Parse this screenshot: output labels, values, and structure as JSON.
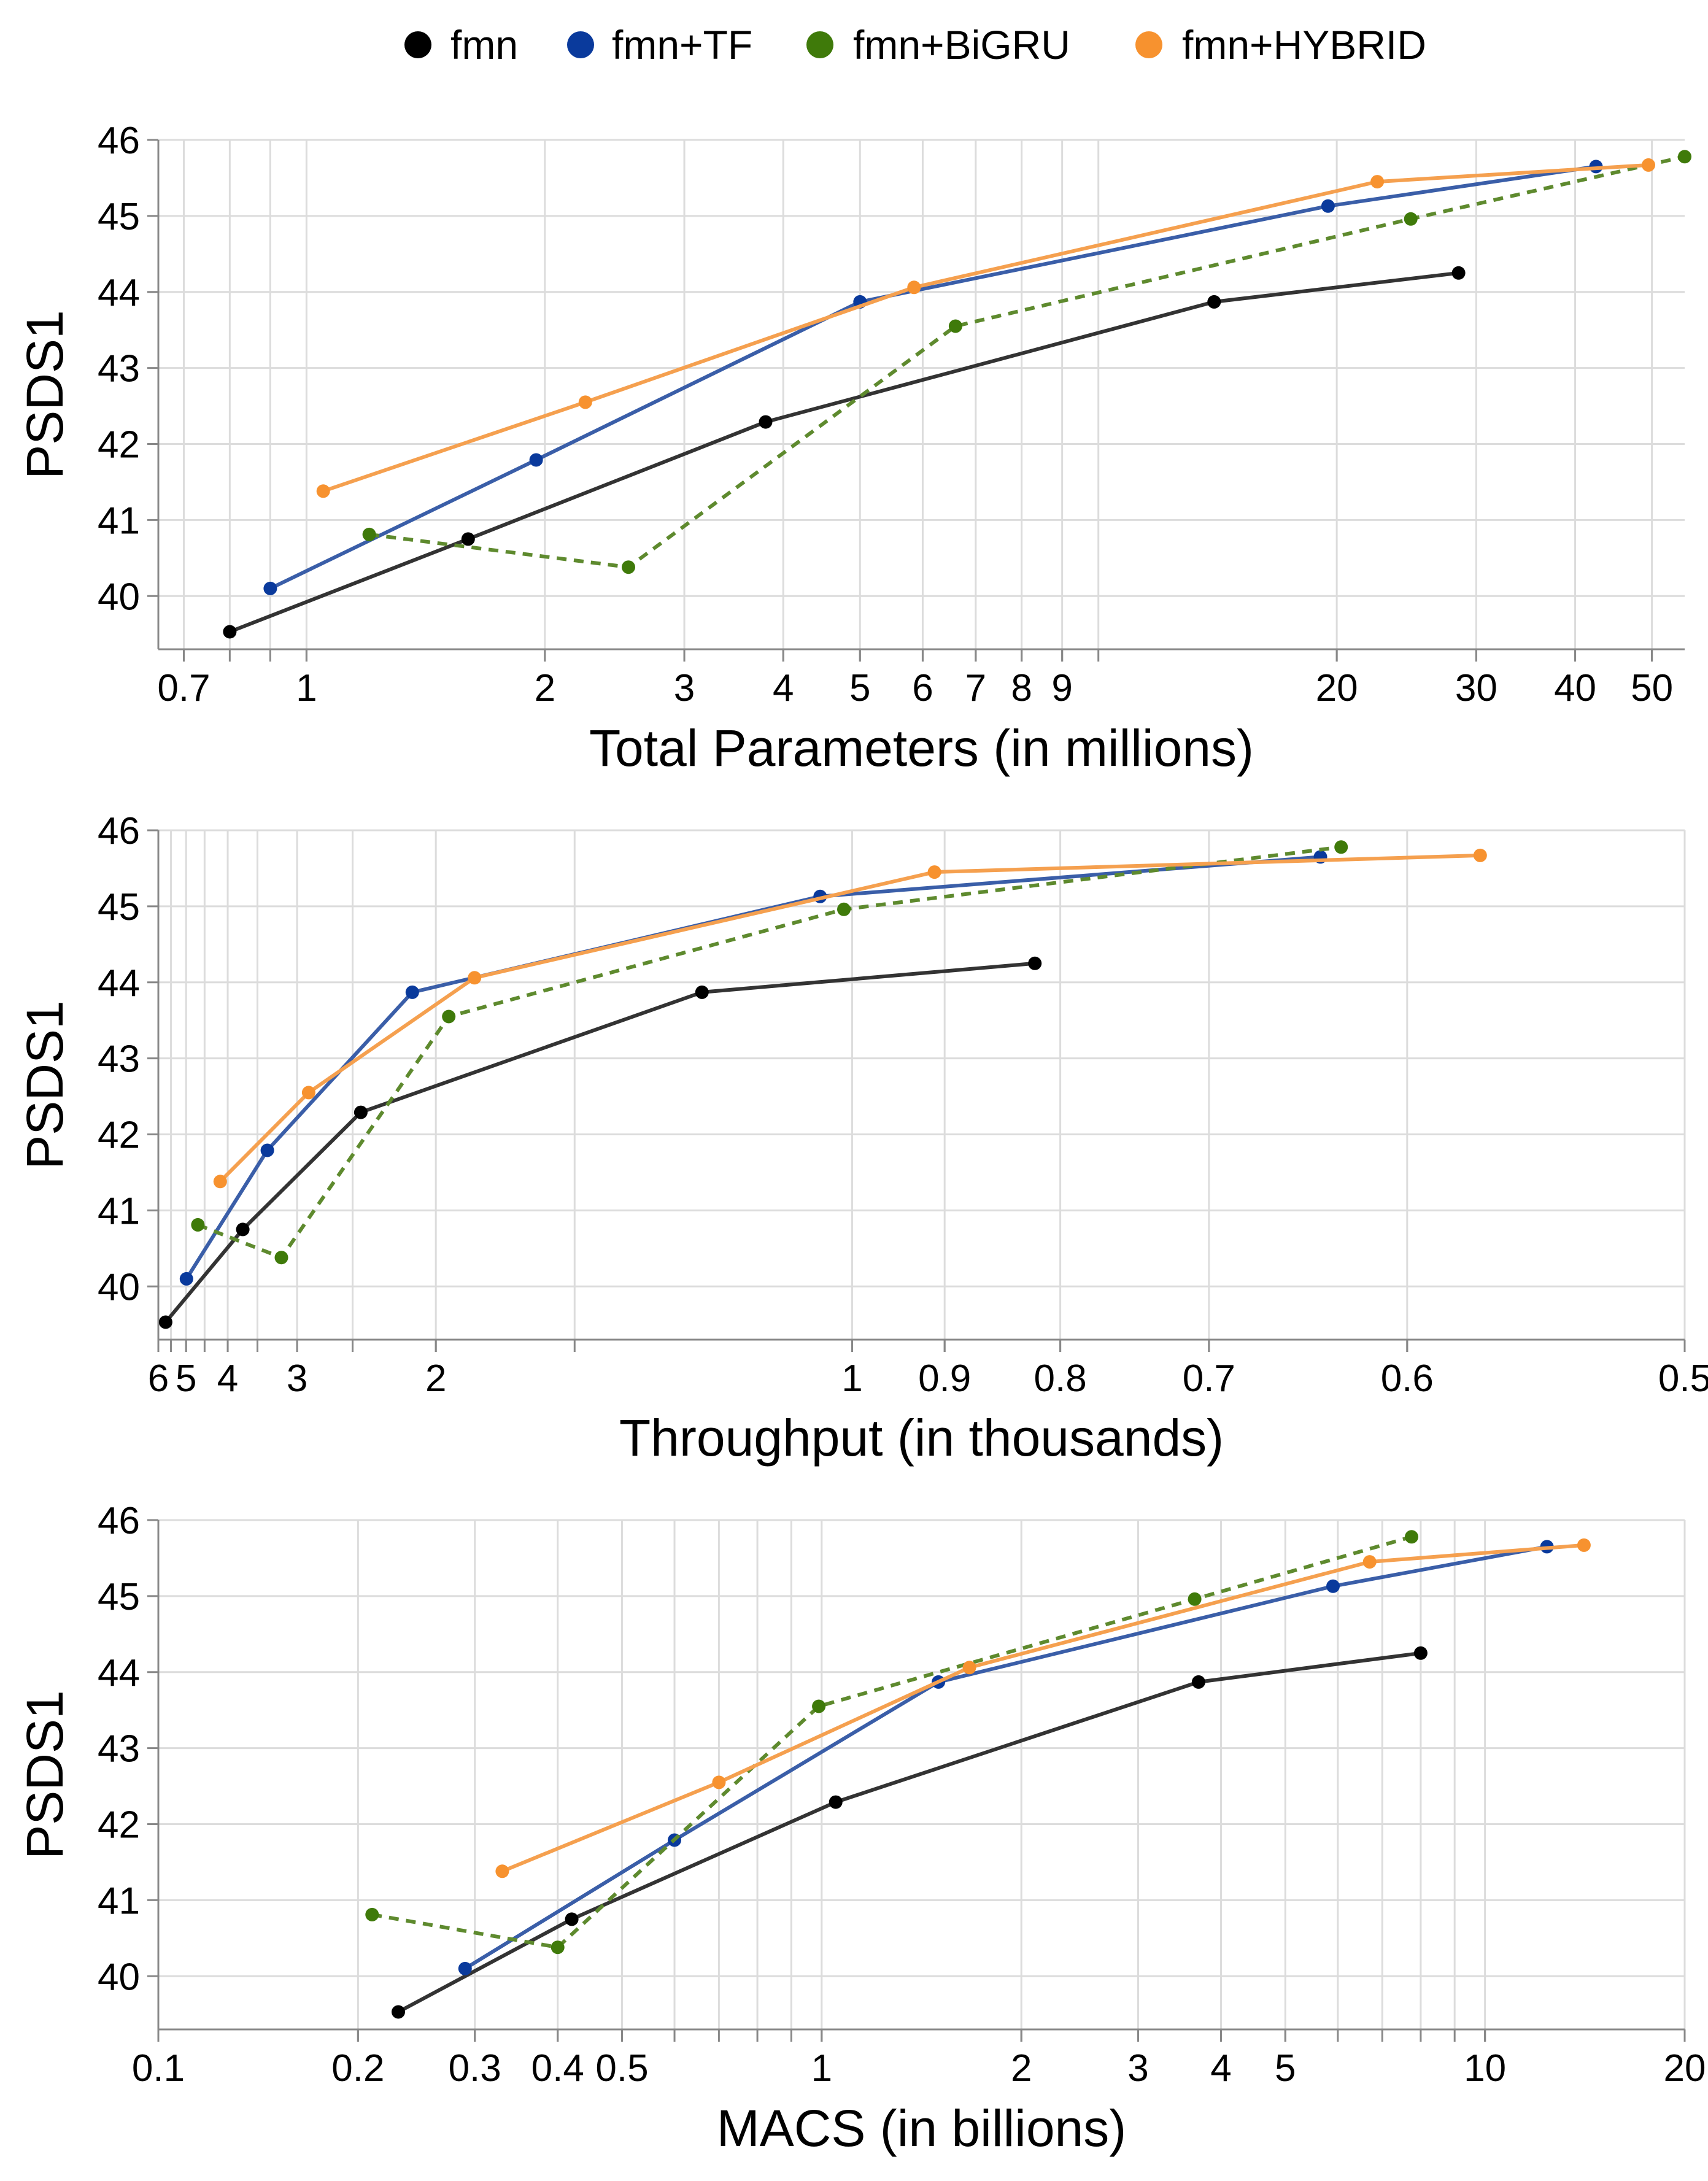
{
  "legend": [
    {
      "name": "fmn",
      "color": "#000000"
    },
    {
      "name": "fmn+TF",
      "color": "#0a3a9c"
    },
    {
      "name": "fmn+BiGRU",
      "color": "#3f7a0a"
    },
    {
      "name": "fmn+HYBRID",
      "color": "#f7922f"
    }
  ],
  "line_colors": {
    "fmn": "#333333",
    "fmn+TF": "#3a5ea8",
    "fmn+BiGRU": "#5e8a2e",
    "fmn+HYBRID": "#f5a04f"
  },
  "chart_data": [
    {
      "type": "line",
      "xlabel": "Total Parameters (in millions)",
      "ylabel": "PSDS1",
      "xscale": "log",
      "xlim": [
        0.65,
        55
      ],
      "ylim": [
        39.3,
        46
      ],
      "grid": true,
      "legend": "top",
      "xticks": [
        0.7,
        1,
        2,
        3,
        4,
        5,
        6,
        7,
        8,
        9,
        20,
        30,
        40,
        50
      ],
      "xtick_labels": [
        "0.7",
        "1",
        "2",
        "3",
        "4",
        "5",
        "6",
        "7",
        "8",
        "9",
        "20",
        "30",
        "40",
        "50"
      ],
      "yticks": [
        40,
        41,
        42,
        43,
        44,
        45,
        46
      ],
      "ytick_labels": [
        "40",
        "41",
        "42",
        "43",
        "44",
        "45",
        "46"
      ],
      "series": [
        {
          "name": "fmn",
          "x": [
            0.8,
            1.6,
            3.8,
            14.0,
            28.5
          ],
          "y": [
            39.53,
            40.75,
            42.29,
            43.87,
            44.25
          ],
          "dashed": false
        },
        {
          "name": "fmn+TF",
          "x": [
            0.9,
            1.95,
            5.0,
            19.5,
            42.5
          ],
          "y": [
            40.1,
            41.79,
            43.87,
            45.13,
            45.65
          ],
          "dashed": false
        },
        {
          "name": "fmn+BiGRU",
          "x": [
            1.2,
            2.55,
            6.6,
            24.8,
            55.0
          ],
          "y": [
            40.81,
            40.38,
            43.55,
            44.96,
            45.78
          ],
          "dashed": true
        },
        {
          "name": "fmn+HYBRID",
          "x": [
            1.05,
            2.25,
            5.85,
            22.5,
            49.5
          ],
          "y": [
            41.38,
            42.55,
            44.06,
            45.45,
            45.67
          ],
          "dashed": false
        }
      ]
    },
    {
      "type": "line",
      "xlabel": "Throughput (in thousands)",
      "ylabel": "PSDS1",
      "xscale": "reciprocal",
      "xlim": [
        6.0,
        0.5
      ],
      "ylim": [
        39.3,
        46
      ],
      "grid": true,
      "xticks": [
        6,
        5,
        4,
        3,
        2,
        1,
        0.9,
        0.8,
        0.7,
        0.6,
        0.5
      ],
      "xtick_labels": [
        "6",
        "5",
        "4",
        "3",
        "2",
        "1",
        "0.9",
        "0.8",
        "0.7",
        "0.6",
        "0.5"
      ],
      "yticks": [
        40,
        41,
        42,
        43,
        44,
        45,
        46
      ],
      "ytick_labels": [
        "40",
        "41",
        "42",
        "43",
        "44",
        "45",
        "46"
      ],
      "series": [
        {
          "name": "fmn",
          "x": [
            5.7,
            3.73,
            2.44,
            1.22,
            0.82
          ],
          "y": [
            39.53,
            40.75,
            42.29,
            43.87,
            44.25
          ],
          "dashed": false
        },
        {
          "name": "fmn+TF",
          "x": [
            4.99,
            3.36,
            2.12,
            1.04,
            0.64
          ],
          "y": [
            40.1,
            41.79,
            43.87,
            45.13,
            45.65
          ],
          "dashed": false
        },
        {
          "name": "fmn+BiGRU",
          "x": [
            4.67,
            3.18,
            1.94,
            1.01,
            0.63
          ],
          "y": [
            40.81,
            40.38,
            43.55,
            44.96,
            45.78
          ],
          "dashed": true
        },
        {
          "name": "fmn+HYBRID",
          "x": [
            4.15,
            2.88,
            1.83,
            0.91,
            0.57
          ],
          "y": [
            41.38,
            42.55,
            44.06,
            45.45,
            45.67
          ],
          "dashed": false
        }
      ]
    },
    {
      "type": "line",
      "xlabel": "MACS (in billions)",
      "ylabel": "PSDS1",
      "xscale": "log",
      "xlim": [
        0.1,
        20
      ],
      "ylim": [
        39.3,
        46
      ],
      "grid": true,
      "xticks": [
        0.1,
        0.2,
        0.3,
        0.4,
        0.5,
        1,
        2,
        3,
        4,
        5,
        10,
        20
      ],
      "xtick_labels": [
        "0.1",
        "0.2",
        "0.3",
        "0.4",
        "0.5",
        "1",
        "2",
        "3",
        "4",
        "5",
        "10",
        "20"
      ],
      "yticks": [
        40,
        41,
        42,
        43,
        44,
        45,
        46
      ],
      "ytick_labels": [
        "40",
        "41",
        "42",
        "43",
        "44",
        "45",
        "46"
      ],
      "series": [
        {
          "name": "fmn",
          "x": [
            0.23,
            0.42,
            1.05,
            3.7,
            8.0
          ],
          "y": [
            39.53,
            40.75,
            42.29,
            43.87,
            44.25
          ],
          "dashed": false
        },
        {
          "name": "fmn+TF",
          "x": [
            0.29,
            0.6,
            1.5,
            5.9,
            12.4
          ],
          "y": [
            40.1,
            41.79,
            43.87,
            45.13,
            45.65
          ],
          "dashed": false
        },
        {
          "name": "fmn+BiGRU",
          "x": [
            0.21,
            0.4,
            0.99,
            3.65,
            7.75
          ],
          "y": [
            40.81,
            40.38,
            43.55,
            44.96,
            45.78
          ],
          "dashed": true
        },
        {
          "name": "fmn+HYBRID",
          "x": [
            0.33,
            0.7,
            1.67,
            6.7,
            14.1
          ],
          "y": [
            41.38,
            42.55,
            44.06,
            45.45,
            45.67
          ],
          "dashed": false
        }
      ]
    }
  ]
}
